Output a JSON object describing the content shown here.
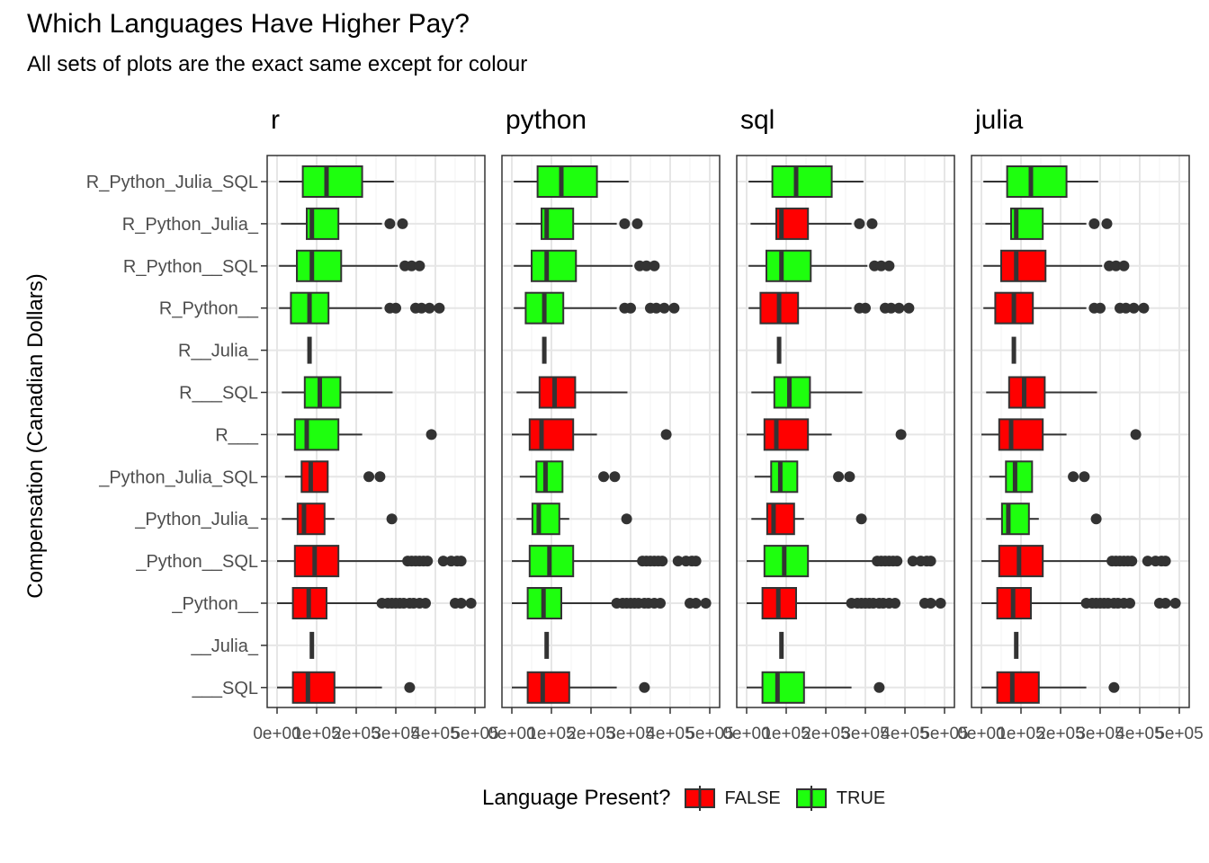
{
  "chart_data": {
    "type": "boxplot",
    "title": "Which Languages Have Higher Pay?",
    "subtitle": "All sets of plots are the exact same except for colour",
    "ylabel": "Compensation (Canadian Dollars)",
    "xlim": [
      0,
      500000
    ],
    "x_ticks": [
      0,
      100000,
      200000,
      300000,
      400000,
      500000
    ],
    "x_tick_labels": [
      "0e+00",
      "1e+05",
      "2e+05",
      "3e+05",
      "4e+05",
      "5e+05"
    ],
    "categories": [
      "R_Python_Julia_SQL",
      "R_Python_Julia_",
      "R_Python__SQL",
      "R_Python__",
      "R__Julia_",
      "R___SQL",
      "R___",
      "_Python_Julia_SQL",
      "_Python_Julia_",
      "_Python__SQL",
      "_Python__",
      "__Julia_",
      "___SQL"
    ],
    "facets": [
      "r",
      "python",
      "sql",
      "julia"
    ],
    "legend": {
      "title": "Language Present?",
      "position": "bottom",
      "entries": [
        {
          "label": "FALSE",
          "color": "#FF0000"
        },
        {
          "label": "TRUE",
          "color": "#1EFF0E"
        }
      ]
    },
    "colors": {
      "false": "#FF0000",
      "true": "#1EFF0E"
    },
    "boxes": [
      {
        "category": "R_Python_Julia_SQL",
        "whisker_low": 5000,
        "q1": 65000,
        "median": 125000,
        "q3": 215000,
        "whisker_high": 295000,
        "outliers": []
      },
      {
        "category": "R_Python_Julia_",
        "whisker_low": 10000,
        "q1": 75000,
        "median": 88000,
        "q3": 155000,
        "whisker_high": 265000,
        "outliers": [
          285000,
          317000
        ]
      },
      {
        "category": "R_Python__SQL",
        "whisker_low": 5000,
        "q1": 50000,
        "median": 88000,
        "q3": 162000,
        "whisker_high": 305000,
        "outliers": [
          323000,
          340000,
          360000
        ]
      },
      {
        "category": "R_Python__",
        "whisker_low": 5000,
        "q1": 35000,
        "median": 82000,
        "q3": 130000,
        "whisker_high": 265000,
        "outliers": [
          285000,
          300000,
          350000,
          365000,
          385000,
          410000
        ]
      },
      {
        "category": "R__Julia_",
        "whisker_low": 82000,
        "q1": 82000,
        "median": 82000,
        "q3": 82000,
        "whisker_high": 82000,
        "outliers": []
      },
      {
        "category": "R___SQL",
        "whisker_low": 12000,
        "q1": 70000,
        "median": 108000,
        "q3": 160000,
        "whisker_high": 292000,
        "outliers": []
      },
      {
        "category": "R___",
        "whisker_low": 0,
        "q1": 45000,
        "median": 75000,
        "q3": 155000,
        "whisker_high": 215000,
        "outliers": [
          390000
        ]
      },
      {
        "category": "_Python_Julia_SQL",
        "whisker_low": 20000,
        "q1": 62000,
        "median": 85000,
        "q3": 128000,
        "whisker_high": 128000,
        "outliers": [
          232000,
          260000
        ]
      },
      {
        "category": "_Python_Julia_",
        "whisker_low": 12000,
        "q1": 52000,
        "median": 68000,
        "q3": 120000,
        "whisker_high": 145000,
        "outliers": [
          290000
        ]
      },
      {
        "category": "_Python__SQL",
        "whisker_low": 0,
        "q1": 45000,
        "median": 95000,
        "q3": 155000,
        "whisker_high": 320000,
        "outliers": [
          330000,
          340000,
          350000,
          360000,
          370000,
          380000,
          420000,
          440000,
          455000,
          465000
        ]
      },
      {
        "category": "_Python__",
        "whisker_low": 0,
        "q1": 40000,
        "median": 80000,
        "q3": 125000,
        "whisker_high": 255000,
        "outliers": [
          265000,
          280000,
          290000,
          300000,
          310000,
          320000,
          335000,
          345000,
          360000,
          375000,
          450000,
          465000,
          490000
        ]
      },
      {
        "category": "__Julia_",
        "whisker_low": 88000,
        "q1": 88000,
        "median": 88000,
        "q3": 88000,
        "whisker_high": 88000,
        "outliers": []
      },
      {
        "category": "___SQL",
        "whisker_low": 0,
        "q1": 40000,
        "median": 78000,
        "q3": 145000,
        "whisker_high": 265000,
        "outliers": [
          335000
        ]
      }
    ],
    "presence": {
      "r": [
        true,
        true,
        true,
        true,
        true,
        true,
        true,
        false,
        false,
        false,
        false,
        false,
        false
      ],
      "python": [
        true,
        true,
        true,
        true,
        false,
        false,
        false,
        true,
        true,
        true,
        true,
        false,
        false
      ],
      "sql": [
        true,
        false,
        true,
        false,
        false,
        true,
        false,
        true,
        false,
        true,
        false,
        false,
        true
      ],
      "julia": [
        true,
        true,
        false,
        false,
        true,
        false,
        false,
        true,
        true,
        false,
        false,
        true,
        false
      ]
    }
  }
}
